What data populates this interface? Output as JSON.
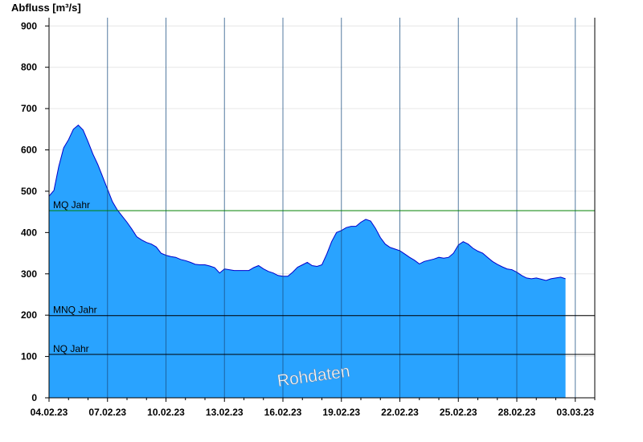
{
  "chart_data": {
    "type": "area",
    "ylabel": "Abfluss [m³/s]",
    "xlabel": "",
    "ylim": [
      0,
      920
    ],
    "yticks": [
      0,
      100,
      200,
      300,
      400,
      500,
      600,
      700,
      800,
      900
    ],
    "x_start": "2023-02-04",
    "x_end": "2023-03-04",
    "xtick_labels": [
      "04.02.23",
      "07.02.23",
      "10.02.23",
      "13.02.23",
      "16.02.23",
      "19.02.23",
      "22.02.23",
      "25.02.23",
      "28.02.23",
      "03.03.23"
    ],
    "xtick_day_offsets": [
      0,
      3,
      6,
      9,
      12,
      15,
      18,
      21,
      24,
      27
    ],
    "grid": "horizontal",
    "fill_color": "#29a3ff",
    "line_color": "#0000cc",
    "series": [
      {
        "name": "",
        "points": [
          [
            "2023-02-04 00:00",
            488
          ],
          [
            "2023-02-04 06:00",
            502
          ],
          [
            "2023-02-04 12:00",
            560
          ],
          [
            "2023-02-04 18:00",
            605
          ],
          [
            "2023-02-05 00:00",
            625
          ],
          [
            "2023-02-05 06:00",
            650
          ],
          [
            "2023-02-05 12:00",
            660
          ],
          [
            "2023-02-05 18:00",
            648
          ],
          [
            "2023-02-06 00:00",
            620
          ],
          [
            "2023-02-06 06:00",
            590
          ],
          [
            "2023-02-06 12:00",
            565
          ],
          [
            "2023-02-06 18:00",
            535
          ],
          [
            "2023-02-07 00:00",
            505
          ],
          [
            "2023-02-07 06:00",
            475
          ],
          [
            "2023-02-07 12:00",
            455
          ],
          [
            "2023-02-07 18:00",
            440
          ],
          [
            "2023-02-08 00:00",
            425
          ],
          [
            "2023-02-08 06:00",
            408
          ],
          [
            "2023-02-08 12:00",
            390
          ],
          [
            "2023-02-08 18:00",
            382
          ],
          [
            "2023-02-09 00:00",
            376
          ],
          [
            "2023-02-09 06:00",
            372
          ],
          [
            "2023-02-09 12:00",
            365
          ],
          [
            "2023-02-09 18:00",
            350
          ],
          [
            "2023-02-10 00:00",
            345
          ],
          [
            "2023-02-10 06:00",
            342
          ],
          [
            "2023-02-10 12:00",
            340
          ],
          [
            "2023-02-10 18:00",
            335
          ],
          [
            "2023-02-11 00:00",
            332
          ],
          [
            "2023-02-11 06:00",
            328
          ],
          [
            "2023-02-11 12:00",
            323
          ],
          [
            "2023-02-11 18:00",
            322
          ],
          [
            "2023-02-12 00:00",
            322
          ],
          [
            "2023-02-12 06:00",
            319
          ],
          [
            "2023-02-12 12:00",
            315
          ],
          [
            "2023-02-12 18:00",
            302
          ],
          [
            "2023-02-13 00:00",
            312
          ],
          [
            "2023-02-13 06:00",
            310
          ],
          [
            "2023-02-13 12:00",
            308
          ],
          [
            "2023-02-13 18:00",
            308
          ],
          [
            "2023-02-14 00:00",
            308
          ],
          [
            "2023-02-14 06:00",
            308
          ],
          [
            "2023-02-14 12:00",
            315
          ],
          [
            "2023-02-14 18:00",
            320
          ],
          [
            "2023-02-15 00:00",
            312
          ],
          [
            "2023-02-15 06:00",
            306
          ],
          [
            "2023-02-15 12:00",
            302
          ],
          [
            "2023-02-15 18:00",
            296
          ],
          [
            "2023-02-16 00:00",
            294
          ],
          [
            "2023-02-16 06:00",
            294
          ],
          [
            "2023-02-16 12:00",
            304
          ],
          [
            "2023-02-16 18:00",
            316
          ],
          [
            "2023-02-17 00:00",
            322
          ],
          [
            "2023-02-17 06:00",
            328
          ],
          [
            "2023-02-17 12:00",
            320
          ],
          [
            "2023-02-17 18:00",
            318
          ],
          [
            "2023-02-18 00:00",
            322
          ],
          [
            "2023-02-18 06:00",
            348
          ],
          [
            "2023-02-18 12:00",
            378
          ],
          [
            "2023-02-18 18:00",
            400
          ],
          [
            "2023-02-19 00:00",
            405
          ],
          [
            "2023-02-19 06:00",
            412
          ],
          [
            "2023-02-19 12:00",
            415
          ],
          [
            "2023-02-19 18:00",
            415
          ],
          [
            "2023-02-20 00:00",
            425
          ],
          [
            "2023-02-20 06:00",
            432
          ],
          [
            "2023-02-20 12:00",
            428
          ],
          [
            "2023-02-20 18:00",
            410
          ],
          [
            "2023-02-21 00:00",
            388
          ],
          [
            "2023-02-21 06:00",
            372
          ],
          [
            "2023-02-21 12:00",
            364
          ],
          [
            "2023-02-21 18:00",
            360
          ],
          [
            "2023-02-22 00:00",
            356
          ],
          [
            "2023-02-22 06:00",
            348
          ],
          [
            "2023-02-22 12:00",
            340
          ],
          [
            "2023-02-22 18:00",
            333
          ],
          [
            "2023-02-23 00:00",
            324
          ],
          [
            "2023-02-23 06:00",
            330
          ],
          [
            "2023-02-23 12:00",
            333
          ],
          [
            "2023-02-23 18:00",
            336
          ],
          [
            "2023-02-24 00:00",
            340
          ],
          [
            "2023-02-24 06:00",
            338
          ],
          [
            "2023-02-24 12:00",
            340
          ],
          [
            "2023-02-24 18:00",
            350
          ],
          [
            "2023-02-25 00:00",
            370
          ],
          [
            "2023-02-25 06:00",
            378
          ],
          [
            "2023-02-25 12:00",
            372
          ],
          [
            "2023-02-25 18:00",
            362
          ],
          [
            "2023-02-26 00:00",
            355
          ],
          [
            "2023-02-26 06:00",
            350
          ],
          [
            "2023-02-26 12:00",
            340
          ],
          [
            "2023-02-26 18:00",
            330
          ],
          [
            "2023-02-27 00:00",
            323
          ],
          [
            "2023-02-27 06:00",
            317
          ],
          [
            "2023-02-27 12:00",
            312
          ],
          [
            "2023-02-27 18:00",
            310
          ],
          [
            "2023-02-28 00:00",
            304
          ],
          [
            "2023-02-28 06:00",
            296
          ],
          [
            "2023-02-28 12:00",
            290
          ],
          [
            "2023-02-28 18:00",
            288
          ],
          [
            "2023-03-01 00:00",
            290
          ],
          [
            "2023-03-01 06:00",
            287
          ],
          [
            "2023-03-01 12:00",
            284
          ],
          [
            "2023-03-01 18:00",
            288
          ],
          [
            "2023-03-02 00:00",
            290
          ],
          [
            "2023-03-02 06:00",
            292
          ],
          [
            "2023-03-02 12:00",
            288
          ]
        ]
      }
    ],
    "reference_lines": [
      {
        "label": "MQ Jahr",
        "value": 453,
        "color": "#008000"
      },
      {
        "label": "MNQ Jahr",
        "value": 199,
        "color": "#000000"
      },
      {
        "label": "NQ Jahr",
        "value": 105,
        "color": "#000000"
      }
    ],
    "annotation": "Rohdaten"
  }
}
